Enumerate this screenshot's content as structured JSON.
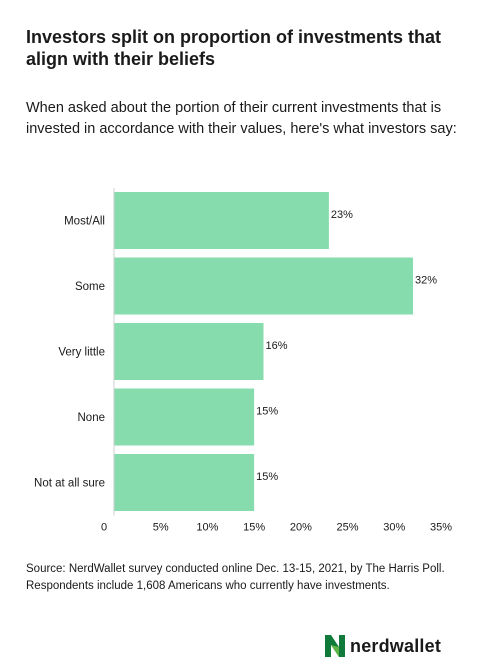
{
  "title": "Investors split on proportion of investments that align with their beliefs",
  "subtitle": "When asked about the portion of their current investments that is invested in accordance with their values, here's what investors say:",
  "source": "Source: NerdWallet survey conducted online Dec. 13-15, 2021, by The Harris Poll. Respondents include 1,608 Americans who currently have investments.",
  "logo": {
    "text": "nerdwallet",
    "icon": "nerdwallet-n-logo",
    "color": "#0f7a3a"
  },
  "chart_data": {
    "type": "bar",
    "orientation": "horizontal",
    "categories": [
      "Most/All",
      "Some",
      "Very little",
      "None",
      "Not at all sure"
    ],
    "values": [
      23,
      32,
      16,
      15,
      15
    ],
    "value_labels": [
      "23%",
      "32%",
      "16%",
      "15%",
      "15%"
    ],
    "xlim": [
      0,
      35
    ],
    "xticks": [
      0,
      5,
      10,
      15,
      20,
      25,
      30,
      35
    ],
    "xtick_labels": [
      "0",
      "5%",
      "10%",
      "15%",
      "20%",
      "25%",
      "30%",
      "35%"
    ],
    "bar_color": "#86dcac",
    "grid": false,
    "legend": "none"
  }
}
